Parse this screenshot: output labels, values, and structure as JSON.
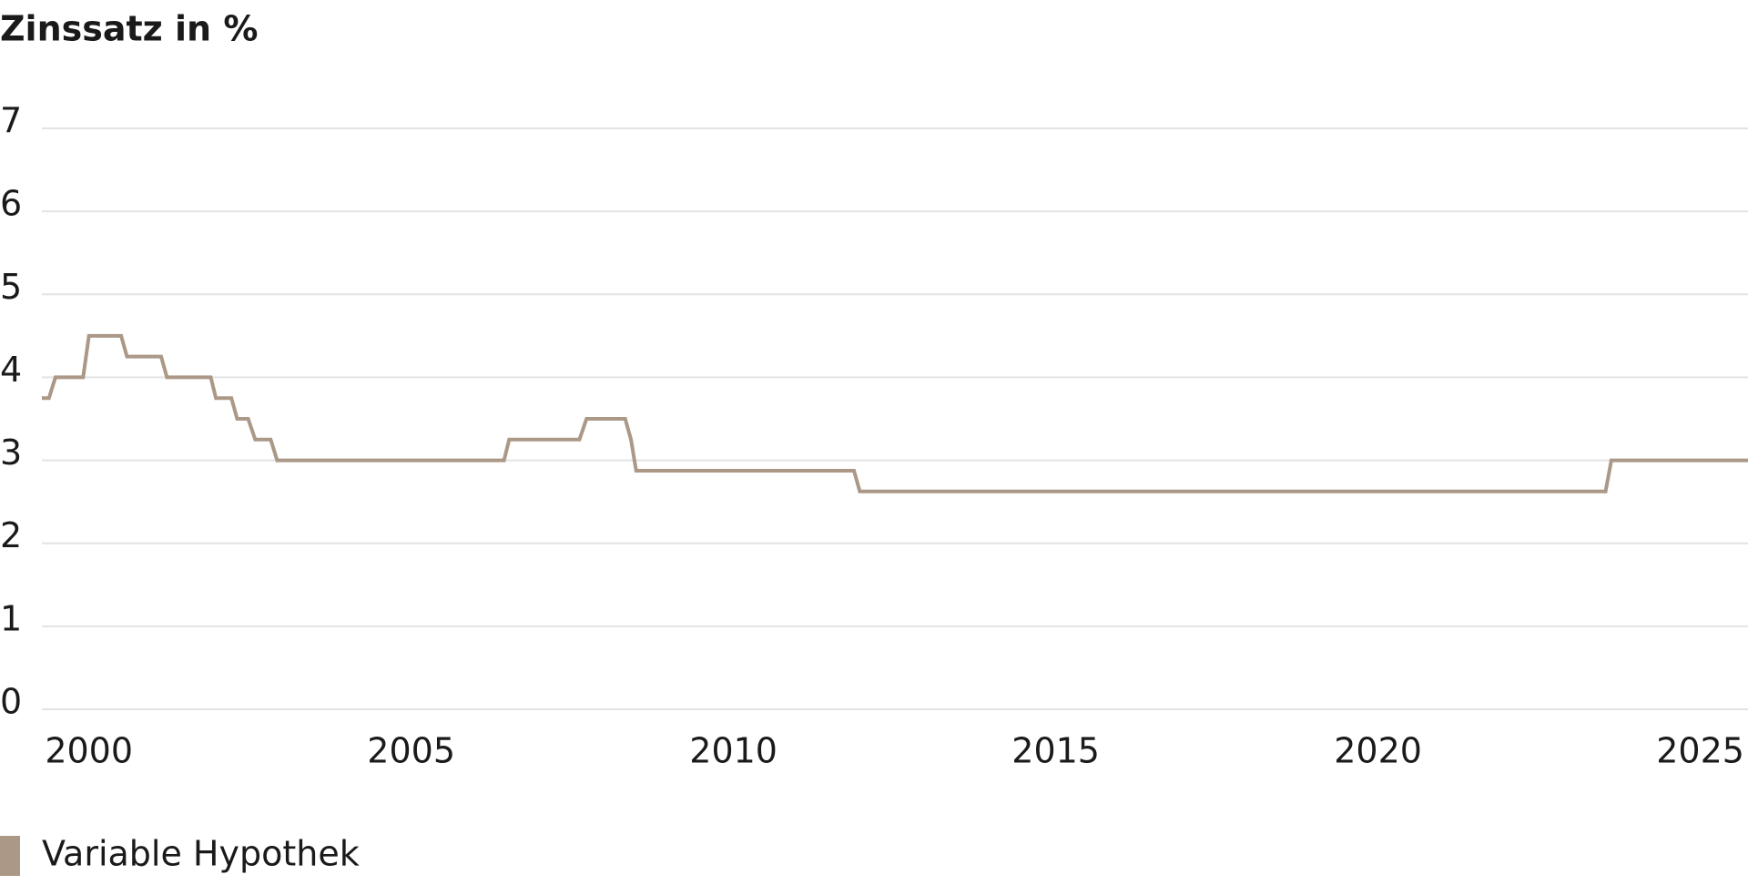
{
  "chart_data": {
    "type": "line",
    "title": "Zinssatz in %",
    "x": [
      1999.27,
      1999.38,
      1999.48,
      1999.91,
      2000.0,
      2000.5,
      2000.59,
      2001.12,
      2001.21,
      2001.89,
      2001.97,
      2002.21,
      2002.3,
      2002.47,
      2002.58,
      2002.82,
      2002.92,
      2006.44,
      2006.52,
      2007.61,
      2007.72,
      2008.32,
      2008.41,
      2008.49,
      2011.87,
      2011.96,
      2023.53,
      2023.62,
      2025.74
    ],
    "series": [
      {
        "name": "Variable Hypothek",
        "color": "#ab9886",
        "values": [
          3.75,
          3.75,
          4.0,
          4.0,
          4.5,
          4.5,
          4.25,
          4.25,
          4.0,
          4.0,
          3.75,
          3.75,
          3.5,
          3.5,
          3.25,
          3.25,
          3.0,
          3.0,
          3.25,
          3.25,
          3.5,
          3.5,
          3.25,
          2.875,
          2.875,
          2.625,
          2.625,
          3.0,
          3.0
        ]
      }
    ],
    "xlim": [
      1999.27,
      2025.74
    ],
    "xticks": [
      2000,
      2005,
      2010,
      2015,
      2020,
      2025
    ],
    "ylim": [
      0,
      7
    ],
    "yticks": [
      0,
      1,
      2,
      3,
      4,
      5,
      6,
      7
    ],
    "grid": true
  }
}
